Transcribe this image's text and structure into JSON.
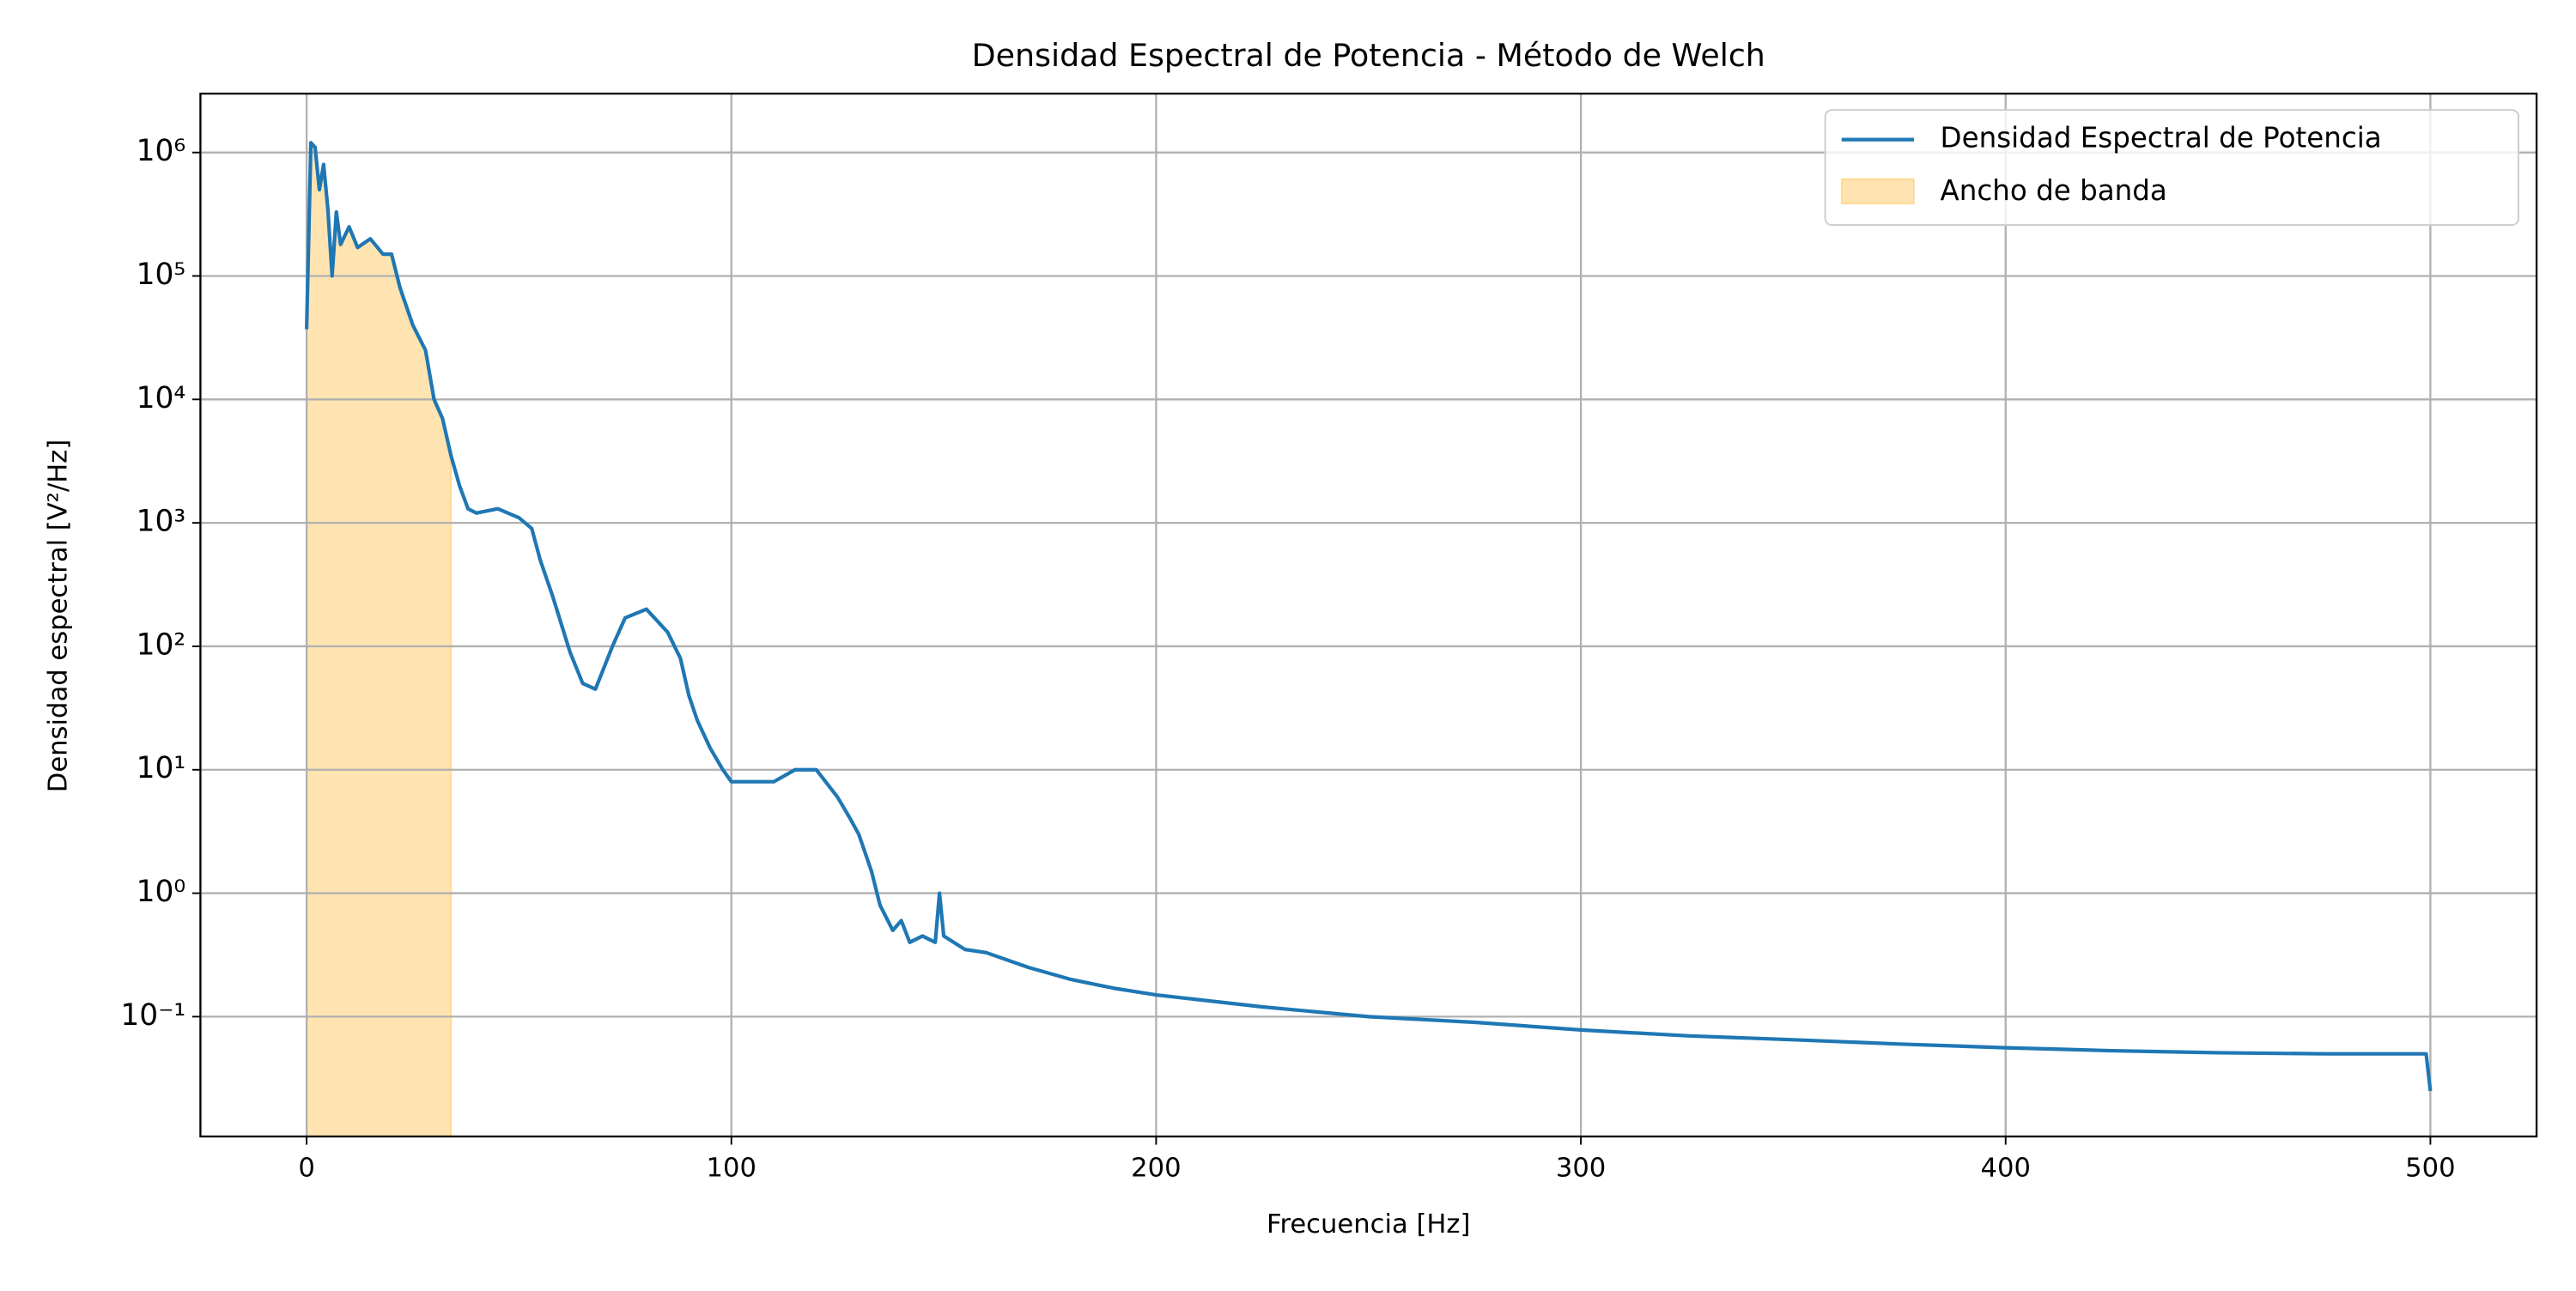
{
  "chart_data": {
    "type": "line",
    "title": "Densidad Espectral de Potencia - Método de Welch",
    "xlabel": "Frecuencia [Hz]",
    "ylabel": "Densidad espectral [V²/Hz]",
    "x": [
      0,
      1,
      2,
      3,
      4,
      5,
      6,
      7,
      8,
      10,
      12,
      15,
      18,
      20,
      22,
      25,
      28,
      30,
      32,
      34,
      36,
      38,
      40,
      45,
      50,
      53,
      55,
      58,
      60,
      62,
      65,
      68,
      72,
      75,
      80,
      85,
      88,
      90,
      92,
      95,
      98,
      100,
      105,
      110,
      115,
      120,
      125,
      128,
      130,
      133,
      135,
      138,
      140,
      142,
      145,
      148,
      149,
      150,
      155,
      160,
      170,
      180,
      190,
      200,
      225,
      250,
      275,
      300,
      325,
      350,
      375,
      400,
      425,
      450,
      475,
      499,
      500
    ],
    "series": [
      {
        "name": "Densidad Espectral de Potencia",
        "color": "#1f77b4",
        "values": [
          37000,
          1200000,
          1100000,
          500000,
          800000,
          350000,
          100000,
          330000,
          180000,
          250000,
          170000,
          200000,
          150000,
          150000,
          80000,
          40000,
          25000,
          10000,
          7000,
          3500,
          2000,
          1300,
          1200,
          1300,
          1100,
          900,
          500,
          250,
          150,
          90,
          50,
          45,
          100,
          170,
          200,
          130,
          80,
          40,
          25,
          15,
          10,
          8,
          8,
          8,
          10,
          10,
          6,
          4,
          3,
          1.5,
          0.8,
          0.5,
          0.6,
          0.4,
          0.45,
          0.4,
          1.0,
          0.45,
          0.35,
          0.33,
          0.25,
          0.2,
          0.17,
          0.15,
          0.12,
          0.1,
          0.09,
          0.078,
          0.07,
          0.065,
          0.06,
          0.056,
          0.053,
          0.051,
          0.05,
          0.05,
          0.025
        ]
      }
    ],
    "fill": {
      "name": "Ancho de banda",
      "color": "#ffa500",
      "opacity": 0.3,
      "range": [
        0,
        34
      ]
    },
    "xlim": [
      -25,
      525
    ],
    "xticks": [
      0,
      100,
      200,
      300,
      400,
      500
    ],
    "ylim": [
      0.0107,
      3000000
    ],
    "yscale": "log",
    "yticks": [
      {
        "value": 0.1,
        "label": "10⁻¹"
      },
      {
        "value": 1,
        "label": "10⁰"
      },
      {
        "value": 10,
        "label": "10¹"
      },
      {
        "value": 100,
        "label": "10²"
      },
      {
        "value": 1000,
        "label": "10³"
      },
      {
        "value": 10000,
        "label": "10⁴"
      },
      {
        "value": 100000,
        "label": "10⁵"
      },
      {
        "value": 1000000,
        "label": "10⁶"
      }
    ],
    "grid": true,
    "legend": "upper right"
  }
}
